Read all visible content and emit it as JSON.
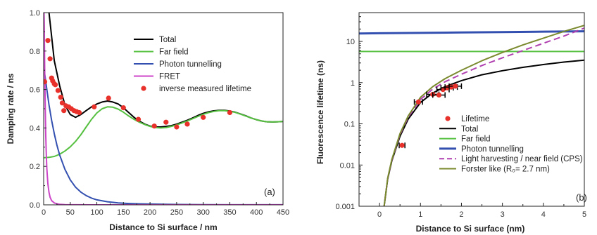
{
  "chart_data": [
    {
      "type": "line",
      "xlabel": "Distance to Si surface / nm",
      "ylabel": "Damping rate / ns",
      "xlim": [
        0,
        450
      ],
      "ylim": [
        0,
        1.0
      ],
      "xticks": [
        "0",
        "50",
        "100",
        "150",
        "200",
        "250",
        "300",
        "350",
        "400",
        "450"
      ],
      "yticks": [
        "0.0",
        "0.2",
        "0.4",
        "0.6",
        "0.8",
        "1.0"
      ],
      "panel_label": "(a)",
      "legend_position": "top-right",
      "series": [
        {
          "name": "Total",
          "color": "#000000",
          "x": [
            0,
            10,
            20,
            30,
            40,
            50,
            60,
            70,
            80,
            90,
            100,
            110,
            120,
            130,
            140,
            150,
            160,
            170,
            180,
            190,
            200,
            210,
            220,
            230,
            240,
            250,
            260,
            270,
            280,
            290,
            300,
            310,
            320,
            330,
            340,
            350,
            360,
            370,
            380,
            390,
            400,
            410,
            420,
            430,
            440,
            450
          ],
          "values": [
            1.2,
            1.0,
            0.75,
            0.62,
            0.52,
            0.47,
            0.455,
            0.47,
            0.49,
            0.51,
            0.525,
            0.535,
            0.54,
            0.535,
            0.525,
            0.505,
            0.48,
            0.455,
            0.435,
            0.42,
            0.41,
            0.405,
            0.405,
            0.408,
            0.412,
            0.42,
            0.43,
            0.44,
            0.452,
            0.465,
            0.476,
            0.484,
            0.489,
            0.492,
            0.492,
            0.488,
            0.482,
            0.473,
            0.463,
            0.452,
            0.443,
            0.436,
            0.432,
            0.431,
            0.432,
            0.434
          ]
        },
        {
          "name": "Far field",
          "color": "#55c040",
          "x": [
            0,
            10,
            20,
            30,
            40,
            50,
            60,
            70,
            80,
            90,
            100,
            110,
            120,
            130,
            140,
            150,
            160,
            170,
            180,
            190,
            200,
            210,
            220,
            230,
            240,
            250,
            260,
            270,
            280,
            290,
            300,
            310,
            320,
            330,
            340,
            350,
            360,
            370,
            380,
            390,
            400,
            410,
            420,
            430,
            440,
            450
          ],
          "values": [
            0.245,
            0.247,
            0.252,
            0.263,
            0.28,
            0.302,
            0.33,
            0.365,
            0.405,
            0.445,
            0.478,
            0.5,
            0.51,
            0.508,
            0.498,
            0.482,
            0.462,
            0.445,
            0.43,
            0.418,
            0.408,
            0.402,
            0.4,
            0.402,
            0.408,
            0.416,
            0.426,
            0.436,
            0.448,
            0.46,
            0.471,
            0.48,
            0.486,
            0.49,
            0.49,
            0.487,
            0.481,
            0.472,
            0.462,
            0.452,
            0.443,
            0.436,
            0.432,
            0.431,
            0.432,
            0.434
          ]
        },
        {
          "name": "Photon tunnelling",
          "color": "#3350b0",
          "x": [
            0,
            5,
            10,
            15,
            20,
            25,
            30,
            40,
            50,
            60,
            70,
            80,
            90,
            100,
            120,
            140,
            160,
            180,
            200,
            250,
            300,
            350,
            400,
            450
          ],
          "values": [
            0.72,
            0.62,
            0.52,
            0.44,
            0.37,
            0.31,
            0.26,
            0.185,
            0.13,
            0.092,
            0.066,
            0.048,
            0.035,
            0.026,
            0.016,
            0.01,
            0.007,
            0.005,
            0.004,
            0.002,
            0.001,
            0.0005,
            0.0003,
            0.0002
          ]
        },
        {
          "name": "FRET",
          "color": "#cc44c8",
          "x": [
            0,
            1,
            2,
            3,
            4,
            5,
            6,
            8,
            10,
            12,
            15,
            20,
            25,
            30,
            40,
            60,
            100,
            200,
            450
          ],
          "values": [
            1.2,
            0.95,
            0.7,
            0.5,
            0.36,
            0.26,
            0.19,
            0.11,
            0.065,
            0.04,
            0.022,
            0.01,
            0.005,
            0.003,
            0.001,
            0.0004,
            0.0001,
            0,
            0
          ]
        },
        {
          "name": "inverse measured lifetime",
          "color": "#e8312a",
          "marker": "circle",
          "x": [
            2,
            8,
            12,
            15,
            17,
            20,
            22,
            27,
            32,
            35,
            38,
            42,
            47,
            52,
            57,
            62,
            67,
            95,
            122,
            150,
            178,
            208,
            230,
            250,
            270,
            300,
            350
          ],
          "values": [
            0.64,
            0.855,
            0.76,
            0.66,
            0.645,
            0.63,
            0.625,
            0.595,
            0.56,
            0.53,
            0.49,
            0.515,
            0.51,
            0.5,
            0.49,
            0.485,
            0.48,
            0.51,
            0.555,
            0.505,
            0.445,
            0.41,
            0.43,
            0.405,
            0.42,
            0.455,
            0.48
          ]
        }
      ]
    },
    {
      "type": "line",
      "xlabel": "Distance to Si surface (nm)",
      "ylabel": "Fluorescence lifetime (ns)",
      "xlim": [
        -0.5,
        5
      ],
      "ylim": [
        0.001,
        50
      ],
      "yscale": "log",
      "xticks": [
        "0",
        "1",
        "2",
        "3",
        "4",
        "5"
      ],
      "yticks": [
        "0.001",
        "0.01",
        "0.1",
        "1",
        "10"
      ],
      "panel_label": "(b)",
      "legend_position": "bottom-center",
      "series": [
        {
          "name": "Lifetime",
          "color": "#e8312a",
          "marker": "circle",
          "x": [
            0.55,
            0.95,
            1.3,
            1.45,
            1.55,
            1.65,
            1.75,
            1.85
          ],
          "values": [
            0.03,
            0.34,
            0.52,
            0.5,
            0.68,
            0.75,
            0.78,
            0.82
          ],
          "xerr": [
            0.07,
            0.1,
            0.15,
            0.15,
            0.15,
            0.15,
            0.15,
            0.15
          ]
        },
        {
          "name": "Total",
          "color": "#000000",
          "x": [
            0.1,
            0.2,
            0.3,
            0.5,
            0.7,
            1.0,
            1.3,
            1.6,
            2.0,
            2.5,
            3.0,
            3.5,
            4.0,
            4.5,
            5.0
          ],
          "values": [
            0.0008,
            0.0046,
            0.0125,
            0.05,
            0.13,
            0.33,
            0.56,
            0.8,
            1.12,
            1.55,
            1.95,
            2.35,
            2.75,
            3.15,
            3.5
          ]
        },
        {
          "name": "Far field",
          "color": "#55c040",
          "x": [
            -0.5,
            5.0
          ],
          "values": [
            5.7,
            5.7
          ]
        },
        {
          "name": "Photon tunnelling",
          "color": "#3350b0",
          "x": [
            -0.5,
            0,
            1,
            2,
            3,
            4,
            5
          ],
          "values": [
            15.6,
            15.8,
            16.1,
            16.5,
            16.9,
            17.3,
            17.6
          ]
        },
        {
          "name": "Light harvesting / near field (CPS)",
          "color": "#b040b0",
          "dashed": true,
          "x": [
            0.1,
            0.2,
            0.3,
            0.5,
            0.7,
            1.0,
            1.3,
            1.6,
            2.0,
            2.5,
            3.0,
            3.5,
            4.0,
            4.5,
            5.0
          ],
          "values": [
            0.0008,
            0.0047,
            0.013,
            0.055,
            0.145,
            0.39,
            0.7,
            1.05,
            1.6,
            2.6,
            4.0,
            6.0,
            9.0,
            13.5,
            21
          ]
        },
        {
          "name": "Forster like (R₀= 2.7 nm)",
          "color": "#7a8a2e",
          "x": [
            0.1,
            0.2,
            0.3,
            0.5,
            0.7,
            1.0,
            1.3,
            1.6,
            2.0,
            2.5,
            3.0,
            3.5,
            4.0,
            4.5,
            5.0
          ],
          "values": [
            0.0008,
            0.0048,
            0.0135,
            0.058,
            0.155,
            0.44,
            0.8,
            1.25,
            2.0,
            3.4,
            5.4,
            8.2,
            12.0,
            17.5,
            24.5
          ]
        }
      ]
    }
  ]
}
